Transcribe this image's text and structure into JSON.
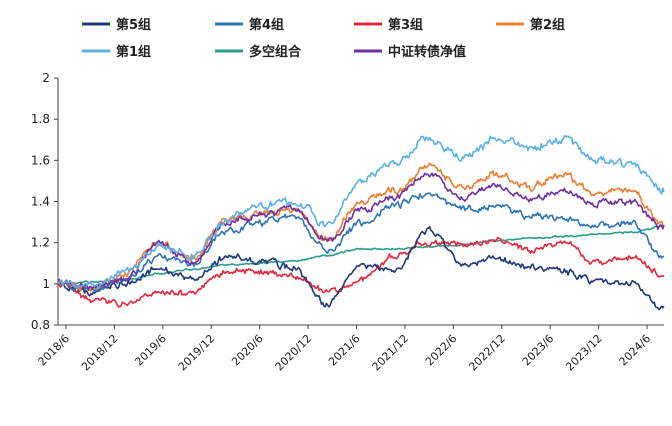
{
  "chart_data": {
    "type": "line",
    "title": "",
    "xlabel": "",
    "ylabel": "",
    "ylim": [
      0.8,
      2.0
    ],
    "yticks": [
      "0.8",
      "1",
      "1.2",
      "1.4",
      "1.6",
      "1.8",
      "2"
    ],
    "x_tick_labels": [
      "2018/6",
      "2018/12",
      "2019/6",
      "2019/12",
      "2020/6",
      "2020/12",
      "2021/6",
      "2021/12",
      "2022/6",
      "2022/12",
      "2023/6",
      "2023/12",
      "2024/6"
    ],
    "legend_position": "top",
    "grid": false,
    "series": [
      {
        "name": "第5组",
        "color": "#1f3a7a",
        "values": [
          1.0,
          0.96,
          1.0,
          1.07,
          1.02,
          1.13,
          1.11,
          1.08,
          0.9,
          1.1,
          1.06,
          1.26,
          1.1,
          1.12,
          1.08,
          1.06,
          1.01,
          1.0,
          0.89
        ]
      },
      {
        "name": "第4组",
        "color": "#2e75b6",
        "values": [
          1.0,
          0.97,
          1.02,
          1.13,
          1.1,
          1.25,
          1.3,
          1.33,
          1.16,
          1.29,
          1.38,
          1.44,
          1.36,
          1.38,
          1.33,
          1.31,
          1.28,
          1.3,
          1.13
        ]
      },
      {
        "name": "第3组",
        "color": "#e8253c",
        "values": [
          1.0,
          0.92,
          0.9,
          0.96,
          0.95,
          1.06,
          1.06,
          1.04,
          0.96,
          1.02,
          1.14,
          1.2,
          1.19,
          1.21,
          1.16,
          1.2,
          1.1,
          1.13,
          1.04
        ]
      },
      {
        "name": "第2组",
        "color": "#ed7d31",
        "values": [
          1.0,
          0.98,
          1.05,
          1.2,
          1.12,
          1.31,
          1.34,
          1.36,
          1.22,
          1.4,
          1.45,
          1.57,
          1.46,
          1.53,
          1.47,
          1.53,
          1.44,
          1.45,
          1.29
        ]
      },
      {
        "name": "第1组",
        "color": "#5ab0e8",
        "values": [
          1.0,
          0.99,
          1.06,
          1.18,
          1.13,
          1.31,
          1.38,
          1.4,
          1.29,
          1.5,
          1.59,
          1.71,
          1.62,
          1.7,
          1.66,
          1.7,
          1.61,
          1.58,
          1.46
        ]
      },
      {
        "name": "多空组合",
        "color": "#2a9d8f",
        "values": [
          1.0,
          1.01,
          1.02,
          1.05,
          1.07,
          1.09,
          1.1,
          1.11,
          1.14,
          1.17,
          1.17,
          1.18,
          1.19,
          1.21,
          1.22,
          1.23,
          1.24,
          1.25,
          1.28
        ]
      },
      {
        "name": "中证转债净值",
        "color": "#7030a0",
        "values": [
          1.0,
          0.98,
          1.02,
          1.2,
          1.1,
          1.3,
          1.33,
          1.37,
          1.21,
          1.36,
          1.42,
          1.54,
          1.42,
          1.47,
          1.42,
          1.45,
          1.39,
          1.4,
          1.27
        ]
      }
    ]
  }
}
